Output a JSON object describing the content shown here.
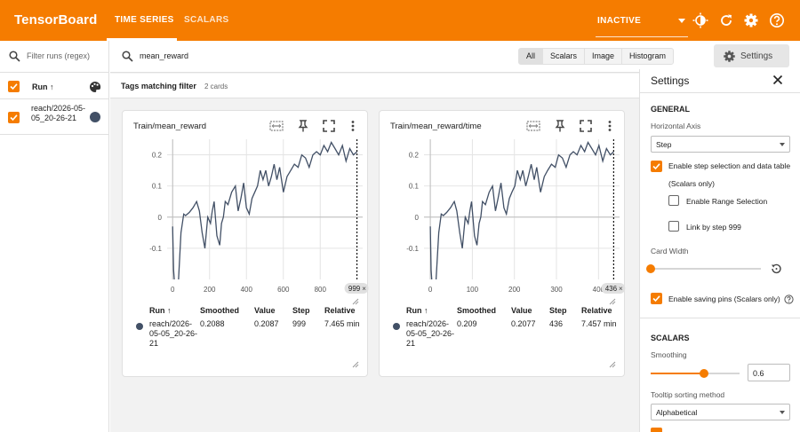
{
  "app": {
    "brand": "TensorBoard",
    "status": "INACTIVE"
  },
  "nav": {
    "tabs": [
      "TIME SERIES",
      "SCALARS"
    ]
  },
  "runs": {
    "filter_placeholder": "Filter runs (regex)",
    "header": "Run ↑",
    "items": [
      {
        "name": "reach/2026-05-05_20-26-21",
        "color": "#425066"
      }
    ]
  },
  "search": {
    "query": "mean_reward",
    "types": [
      "All",
      "Scalars",
      "Image",
      "Histogram"
    ]
  },
  "settings_button": "Settings",
  "tags": {
    "title": "Tags matching filter",
    "count": "2 cards"
  },
  "cards": [
    {
      "title": "Train/mean_reward",
      "step_badge": "999",
      "columns": [
        "Run ↑",
        "Smoothed",
        "Value",
        "Step",
        "Relative"
      ],
      "row": {
        "run": "reach/2026-05-05_20-26-21",
        "smoothed": "0.2088",
        "value": "0.2087",
        "step": "999",
        "relative": "7.465 min"
      },
      "chart_data": {
        "type": "line",
        "x_ticks": [
          "0",
          "200",
          "400",
          "600",
          "800"
        ],
        "y_ticks": [
          "0.2",
          "0.1",
          "0",
          "-0.1"
        ],
        "xlim": [
          -30,
          1030
        ],
        "ylim": [
          -0.2,
          0.25
        ],
        "cursor_x": 999,
        "series": [
          {
            "x": [
              0,
              5,
              15,
              30,
              45,
              60,
              70,
              90,
              110,
              130,
              145,
              160,
              175,
              190,
              205,
              215,
              225,
              240,
              255,
              265,
              275,
              285,
              300,
              320,
              340,
              355,
              370,
              385,
              400,
              415,
              430,
              445,
              460,
              475,
              490,
              505,
              520,
              535,
              550,
              565,
              580,
              600,
              620,
              640,
              660,
              680,
              700,
              720,
              740,
              760,
              780,
              800,
              820,
              840,
              860,
              880,
              900,
              920,
              940,
              960,
              980,
              999
            ],
            "y": [
              -0.03,
              -0.17,
              -0.25,
              -0.22,
              -0.05,
              0.01,
              0.005,
              0.015,
              0.03,
              0.05,
              0.02,
              -0.05,
              -0.1,
              0.0,
              -0.02,
              0.02,
              0.05,
              -0.06,
              -0.09,
              -0.02,
              0.0,
              0.05,
              0.04,
              0.08,
              0.1,
              0.02,
              0.06,
              0.11,
              0.03,
              0.01,
              0.06,
              0.08,
              0.1,
              0.15,
              0.12,
              0.15,
              0.1,
              0.13,
              0.17,
              0.12,
              0.16,
              0.08,
              0.13,
              0.15,
              0.17,
              0.16,
              0.2,
              0.19,
              0.16,
              0.2,
              0.21,
              0.2,
              0.23,
              0.21,
              0.24,
              0.22,
              0.2,
              0.23,
              0.18,
              0.22,
              0.2,
              0.21
            ]
          }
        ]
      }
    },
    {
      "title": "Train/mean_reward/time",
      "step_badge": "436",
      "columns": [
        "Run ↑",
        "Smoothed",
        "Value",
        "Step",
        "Relative"
      ],
      "row": {
        "run": "reach/2026-05-05_20-26-21",
        "smoothed": "0.209",
        "value": "0.2077",
        "step": "436",
        "relative": "7.457 min"
      },
      "chart_data": {
        "type": "line",
        "x_ticks": [
          "0",
          "100",
          "200",
          "300",
          "400"
        ],
        "y_ticks": [
          "0.2",
          "0.1",
          "0",
          "-0.1"
        ],
        "xlim": [
          -15,
          450
        ],
        "ylim": [
          -0.2,
          0.25
        ],
        "cursor_x": 436,
        "series": [
          {
            "x": [
              0,
              2,
              6,
              13,
              20,
              26,
              31,
              39,
              48,
              57,
              63,
              70,
              76,
              83,
              90,
              94,
              98,
              105,
              111,
              116,
              120,
              124,
              131,
              140,
              148,
              155,
              161,
              168,
              175,
              181,
              188,
              194,
              201,
              207,
              214,
              220,
              227,
              233,
              240,
              247,
              253,
              262,
              271,
              279,
              288,
              297,
              305,
              314,
              323,
              332,
              340,
              349,
              358,
              367,
              375,
              384,
              393,
              401,
              410,
              419,
              428,
              436
            ],
            "y": [
              -0.03,
              -0.17,
              -0.25,
              -0.22,
              -0.05,
              0.01,
              0.005,
              0.015,
              0.03,
              0.05,
              0.02,
              -0.05,
              -0.1,
              0.0,
              -0.02,
              0.02,
              0.05,
              -0.06,
              -0.09,
              -0.02,
              0.0,
              0.05,
              0.04,
              0.08,
              0.1,
              0.02,
              0.06,
              0.11,
              0.03,
              0.01,
              0.06,
              0.08,
              0.1,
              0.15,
              0.12,
              0.15,
              0.1,
              0.13,
              0.17,
              0.12,
              0.16,
              0.08,
              0.13,
              0.15,
              0.17,
              0.16,
              0.2,
              0.19,
              0.16,
              0.2,
              0.21,
              0.2,
              0.23,
              0.21,
              0.24,
              0.22,
              0.2,
              0.23,
              0.18,
              0.22,
              0.2,
              0.21
            ]
          }
        ]
      }
    }
  ],
  "settings": {
    "title": "Settings",
    "general": "GENERAL",
    "horizontal_axis_label": "Horizontal Axis",
    "horizontal_axis_value": "Step",
    "enable_step_selection": "Enable step selection and data table",
    "scalars_only": "(Scalars only)",
    "enable_range_selection": "Enable Range Selection",
    "link_by_step": "Link by step 999",
    "card_width": "Card Width",
    "enable_saving_pins": "Enable saving pins (Scalars only)",
    "scalars": "SCALARS",
    "smoothing_label": "Smoothing",
    "smoothing_value": "0.6",
    "smoothing_fraction": 0.6,
    "tooltip_sorting_label": "Tooltip sorting method",
    "tooltip_sorting_value": "Alphabetical"
  },
  "colors": {
    "accent": "#f57c00",
    "series": "#425066"
  }
}
